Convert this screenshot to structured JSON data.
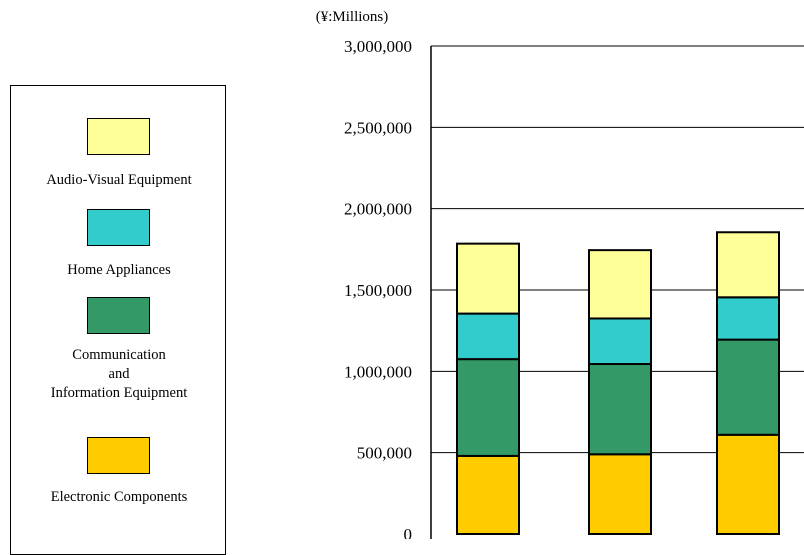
{
  "chart_data": {
    "type": "bar",
    "stacked": true,
    "unit_label": "(¥:Millions)",
    "categories": [
      "",
      "",
      ""
    ],
    "ylim": [
      0,
      3000000
    ],
    "yticks": [
      "3,000,000",
      "2,500,000",
      "2,000,000",
      "1,500,000",
      "1,000,000",
      "500,000",
      "0"
    ],
    "ytick_values": [
      3000000,
      2500000,
      2000000,
      1500000,
      1000000,
      500000,
      0
    ],
    "grid": true,
    "legend_position": "left",
    "series": [
      {
        "name": "Electronic Components",
        "color": "#ffcc00",
        "values": [
          480000,
          490000,
          610000
        ]
      },
      {
        "name": "Communication\nand\nInformation Equipment",
        "color": "#339966",
        "values": [
          595000,
          555000,
          585000
        ]
      },
      {
        "name": "Home Appliances",
        "color": "#33cccc",
        "values": [
          280000,
          280000,
          260000
        ]
      },
      {
        "name": "Audio-Visual Equipment",
        "color": "#ffff99",
        "values": [
          430000,
          420000,
          400000
        ]
      }
    ]
  },
  "legend": {
    "items": [
      {
        "label": "Audio-Visual Equipment",
        "color": "#ffff99"
      },
      {
        "label": "Home Appliances",
        "color": "#33cccc"
      },
      {
        "label": "Communication\nand\nInformation Equipment",
        "color": "#339966"
      },
      {
        "label": "Electronic Components",
        "color": "#ffcc00"
      }
    ]
  }
}
